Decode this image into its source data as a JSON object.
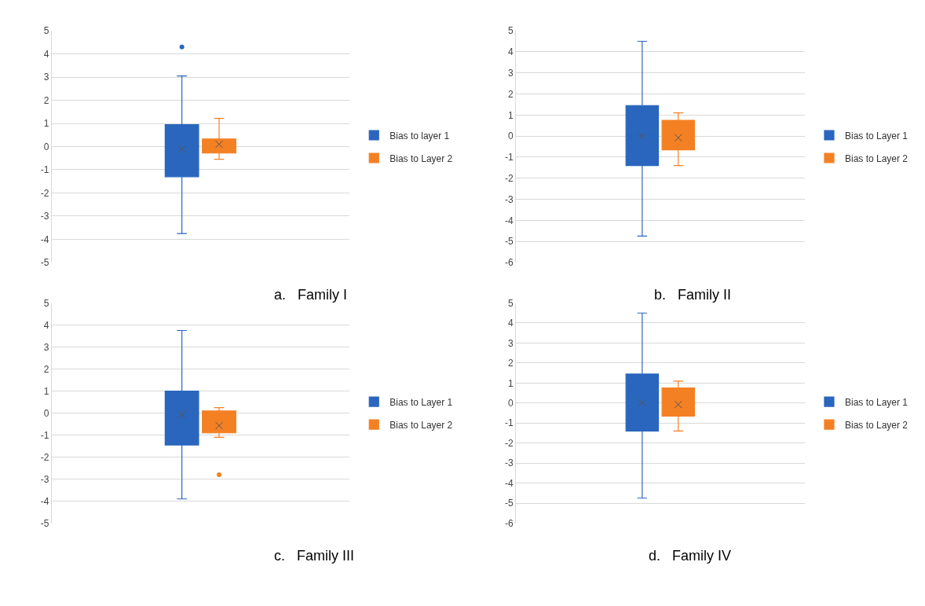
{
  "chart_data": [
    {
      "type": "box",
      "title": "a.   Family I",
      "categories": [
        null
      ],
      "ylim": [
        -5,
        5
      ],
      "yticks": [
        -5,
        -4,
        -3,
        -2,
        -1,
        0,
        1,
        2,
        3,
        4,
        5
      ],
      "grid": "y",
      "legend": "right",
      "marker": "cross",
      "series": [
        {
          "name": "Bias to layer 1",
          "color": "#2a66bd",
          "boxes": [
            {
              "low": -3.75,
              "q1": -1.3,
              "median": -0.3,
              "q3": 0.95,
              "high": 3.05,
              "mean": -0.1,
              "outliers": [
                4.3
              ]
            }
          ]
        },
        {
          "name": "Bias to Layer 2",
          "color": "#f48024",
          "boxes": [
            {
              "low": -0.55,
              "q1": -0.28,
              "median": 0.08,
              "q3": 0.33,
              "high": 1.22,
              "mean": 0.1
            }
          ]
        }
      ]
    },
    {
      "type": "box",
      "title": "b.   Family II",
      "categories": [
        null
      ],
      "ylim": [
        -6,
        5
      ],
      "yticks": [
        -6,
        -5,
        -4,
        -3,
        -2,
        -1,
        0,
        1,
        2,
        3,
        4,
        5
      ],
      "grid": "y",
      "legend": "right",
      "marker": "cross",
      "series": [
        {
          "name": "Bias to Layer 1",
          "color": "#2a66bd",
          "boxes": [
            {
              "low": -4.75,
              "q1": -1.4,
              "median": 0.05,
              "q3": 1.45,
              "high": 4.5,
              "mean": 0.0
            }
          ]
        },
        {
          "name": "Bias to Layer 2",
          "color": "#f48024",
          "boxes": [
            {
              "low": -1.4,
              "q1": -0.65,
              "median": -0.2,
              "q3": 0.75,
              "high": 1.1,
              "mean": -0.08
            }
          ]
        }
      ]
    },
    {
      "type": "box",
      "title": "c.   Family III",
      "categories": [
        null
      ],
      "ylim": [
        -5,
        5
      ],
      "yticks": [
        -5,
        -4,
        -3,
        -2,
        -1,
        0,
        1,
        2,
        3,
        4,
        5
      ],
      "grid": "y",
      "legend": "right",
      "marker": "cross",
      "series": [
        {
          "name": "Bias to Layer 1",
          "color": "#2a66bd",
          "boxes": [
            {
              "low": -3.9,
              "q1": -1.45,
              "median": 0.2,
              "q3": 1.0,
              "high": 3.75,
              "mean": -0.07
            }
          ]
        },
        {
          "name": "Bias to Layer 2",
          "color": "#f48024",
          "boxes": [
            {
              "low": -1.1,
              "q1": -0.9,
              "median": -0.35,
              "q3": 0.1,
              "high": 0.25,
              "mean": -0.57,
              "outliers": [
                -2.8
              ]
            }
          ]
        }
      ]
    },
    {
      "type": "box",
      "title": "d.   Family IV",
      "categories": [
        null
      ],
      "ylim": [
        -6,
        5
      ],
      "yticks": [
        -6,
        -5,
        -4,
        -3,
        -2,
        -1,
        0,
        1,
        2,
        3,
        4,
        5
      ],
      "grid": "y",
      "legend": "right",
      "marker": "cross",
      "series": [
        {
          "name": "Bias to Layer 1",
          "color": "#2a66bd",
          "boxes": [
            {
              "low": -4.75,
              "q1": -1.4,
              "median": 0.05,
              "q3": 1.45,
              "high": 4.5,
              "mean": 0.0
            }
          ]
        },
        {
          "name": "Bias to Layer 2",
          "color": "#f48024",
          "boxes": [
            {
              "low": -1.4,
              "q1": -0.65,
              "median": -0.22,
              "q3": 0.75,
              "high": 1.1,
              "mean": -0.07
            }
          ]
        }
      ]
    }
  ]
}
